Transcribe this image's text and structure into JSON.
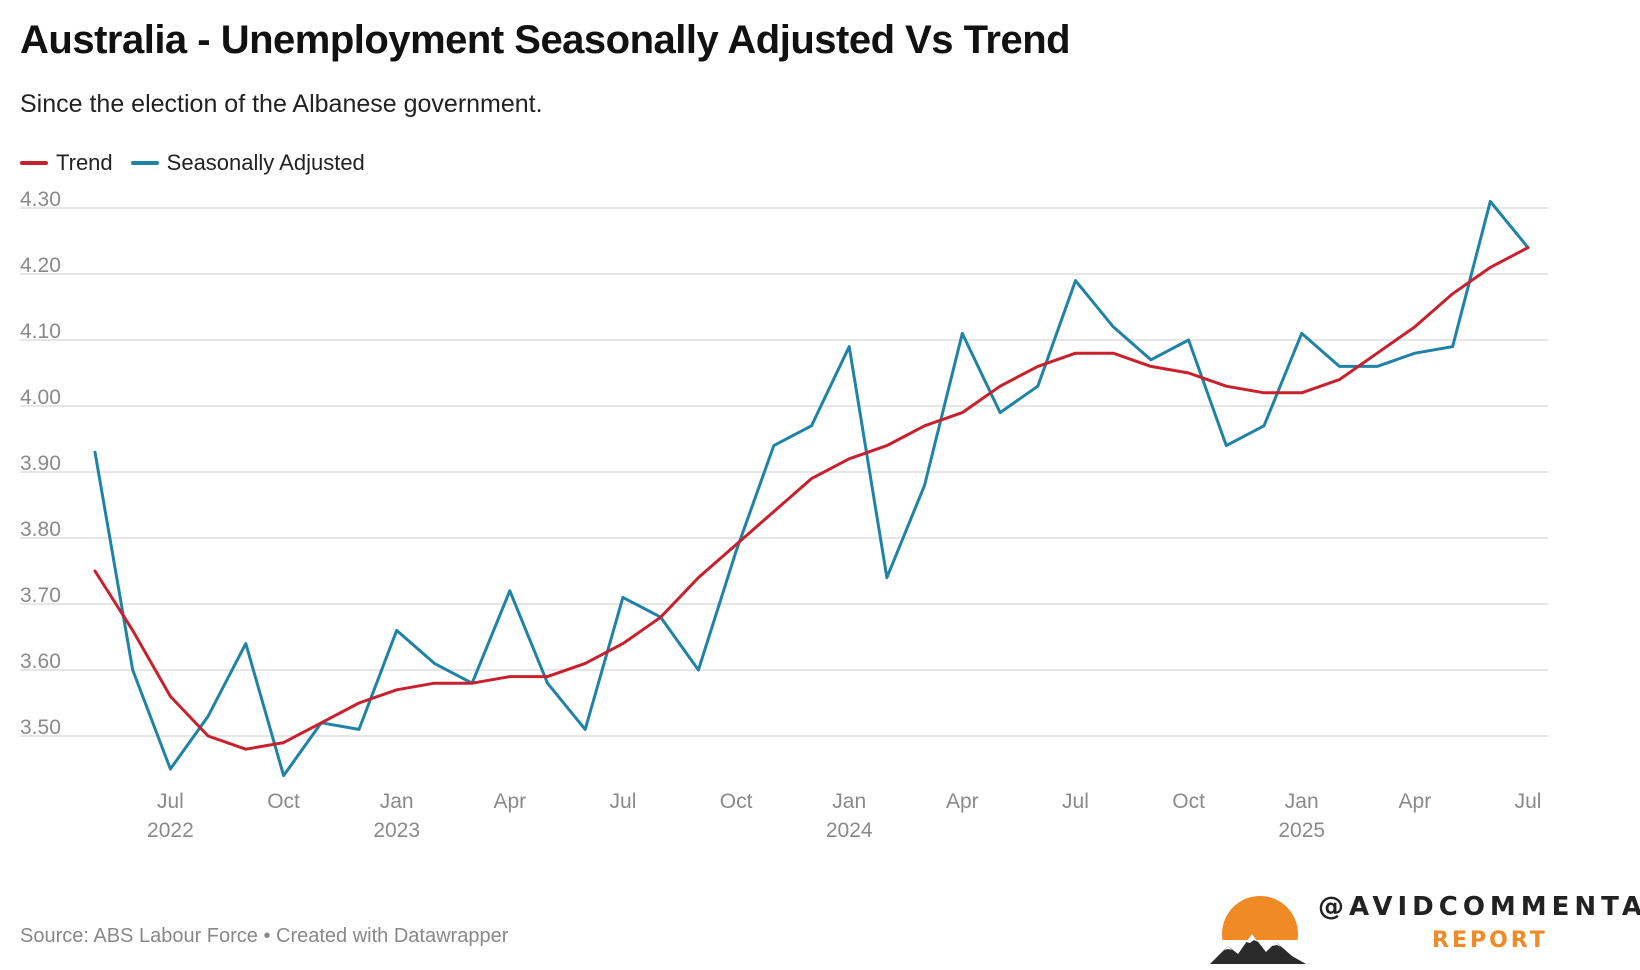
{
  "title": "Australia - Unemployment Seasonally Adjusted Vs Trend",
  "subtitle": "Since the election of the Albanese government.",
  "legend": [
    {
      "name": "Trend",
      "color": "#c8202c"
    },
    {
      "name": "Seasonally Adjusted",
      "color": "#1f83a6"
    }
  ],
  "source": "Source: ABS Labour Force • Created with Datawrapper",
  "brand": {
    "handle": "@AVIDCOMMENTATOR",
    "sub": "REPORT",
    "logo_color": "#f08a24"
  },
  "colors": {
    "trend": "#c8202c",
    "sa": "#1f83a6",
    "grid": "#dddddd",
    "tick": "#8a8a8a"
  },
  "chart_data": {
    "type": "line",
    "title": "Australia - Unemployment Seasonally Adjusted Vs Trend",
    "xlabel": "",
    "ylabel": "",
    "ylim": [
      3.42,
      4.32
    ],
    "y_ticks": [
      "4.30",
      "4.20",
      "4.10",
      "4.00",
      "3.90",
      "3.80",
      "3.70",
      "3.60",
      "3.50"
    ],
    "x": [
      "May 2022",
      "Jun 2022",
      "Jul 2022",
      "Aug 2022",
      "Sep 2022",
      "Oct 2022",
      "Nov 2022",
      "Dec 2022",
      "Jan 2023",
      "Feb 2023",
      "Mar 2023",
      "Apr 2023",
      "May 2023",
      "Jun 2023",
      "Jul 2023",
      "Aug 2023",
      "Sep 2023",
      "Oct 2023",
      "Nov 2023",
      "Dec 2023",
      "Jan 2024",
      "Feb 2024",
      "Mar 2024",
      "Apr 2024",
      "May 2024",
      "Jun 2024",
      "Jul 2024",
      "Aug 2024",
      "Sep 2024",
      "Oct 2024",
      "Nov 2024",
      "Dec 2024",
      "Jan 2025",
      "Feb 2025",
      "Mar 2025",
      "Apr 2025",
      "May 2025",
      "Jun 2025",
      "Jul 2025"
    ],
    "x_ticks": [
      {
        "index": 2,
        "label": "Jul",
        "year": "2022"
      },
      {
        "index": 5,
        "label": "Oct",
        "year": ""
      },
      {
        "index": 8,
        "label": "Jan",
        "year": "2023"
      },
      {
        "index": 11,
        "label": "Apr",
        "year": ""
      },
      {
        "index": 14,
        "label": "Jul",
        "year": ""
      },
      {
        "index": 17,
        "label": "Oct",
        "year": ""
      },
      {
        "index": 20,
        "label": "Jan",
        "year": "2024"
      },
      {
        "index": 23,
        "label": "Apr",
        "year": ""
      },
      {
        "index": 26,
        "label": "Jul",
        "year": ""
      },
      {
        "index": 29,
        "label": "Oct",
        "year": ""
      },
      {
        "index": 32,
        "label": "Jan",
        "year": "2025"
      },
      {
        "index": 35,
        "label": "Apr",
        "year": ""
      },
      {
        "index": 38,
        "label": "Jul",
        "year": ""
      }
    ],
    "series": [
      {
        "name": "Trend",
        "values": [
          3.75,
          3.66,
          3.56,
          3.5,
          3.48,
          3.49,
          3.52,
          3.55,
          3.57,
          3.58,
          3.58,
          3.59,
          3.59,
          3.61,
          3.64,
          3.68,
          3.74,
          3.79,
          3.84,
          3.89,
          3.92,
          3.94,
          3.97,
          3.99,
          4.03,
          4.06,
          4.08,
          4.08,
          4.06,
          4.05,
          4.03,
          4.02,
          4.02,
          4.04,
          4.08,
          4.12,
          4.17,
          4.21,
          4.24
        ]
      },
      {
        "name": "Seasonally Adjusted",
        "values": [
          3.93,
          3.6,
          3.45,
          3.53,
          3.64,
          3.44,
          3.52,
          3.51,
          3.66,
          3.61,
          3.58,
          3.72,
          3.58,
          3.51,
          3.71,
          3.68,
          3.6,
          3.78,
          3.94,
          3.97,
          4.09,
          3.74,
          3.88,
          4.11,
          3.99,
          4.03,
          4.19,
          4.12,
          4.07,
          4.1,
          3.94,
          3.97,
          4.11,
          4.06,
          4.06,
          4.08,
          4.09,
          4.31,
          4.24
        ]
      }
    ]
  }
}
